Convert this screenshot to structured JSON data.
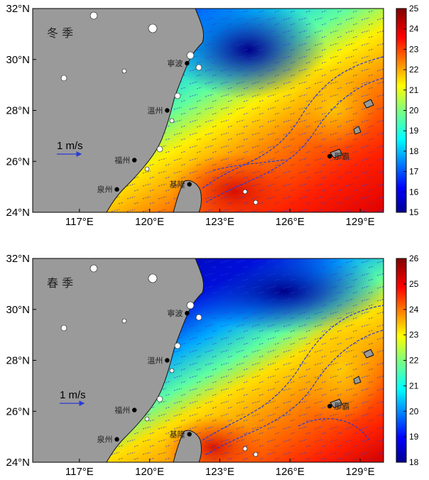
{
  "panels": [
    {
      "season": "冬 季",
      "scale_label": "1 m/s",
      "colorbar": {
        "min": 15,
        "max": 25,
        "ticks": [
          "25",
          "24",
          "23",
          "22",
          "21",
          "20",
          "19",
          "18",
          "17",
          "16",
          "15"
        ]
      },
      "cities": [
        {
          "name": "寧波",
          "lon": 121.6,
          "lat": 29.85
        },
        {
          "name": "溫州",
          "lon": 120.75,
          "lat": 28.0
        },
        {
          "name": "福州",
          "lon": 119.35,
          "lat": 26.05
        },
        {
          "name": "泉州",
          "lon": 118.6,
          "lat": 24.9
        },
        {
          "name": "基隆",
          "lon": 121.7,
          "lat": 25.1
        },
        {
          "name": "那霸",
          "lon": 127.7,
          "lat": 26.2
        }
      ]
    },
    {
      "season": "春 季",
      "scale_label": "1 m/s",
      "colorbar": {
        "min": 18,
        "max": 26,
        "ticks": [
          "26",
          "25",
          "24",
          "23",
          "22",
          "21",
          "20",
          "19",
          "18"
        ]
      },
      "cities": [
        {
          "name": "寧波",
          "lon": 121.6,
          "lat": 29.85
        },
        {
          "name": "溫州",
          "lon": 120.75,
          "lat": 28.0
        },
        {
          "name": "福州",
          "lon": 119.35,
          "lat": 26.05
        },
        {
          "name": "泉州",
          "lon": 118.6,
          "lat": 24.9
        },
        {
          "name": "基隆",
          "lon": 121.7,
          "lat": 25.1
        },
        {
          "name": "那霸",
          "lon": 127.7,
          "lat": 26.2
        }
      ]
    }
  ],
  "axes": {
    "lat_ticks": [
      "24°N",
      "26°N",
      "28°N",
      "30°N",
      "32°N"
    ],
    "lon_ticks": [
      "117°E",
      "120°E",
      "123°E",
      "126°E",
      "129°E"
    ],
    "lat_values": [
      24,
      26,
      28,
      30,
      32
    ],
    "lon_values": [
      117,
      120,
      123,
      126,
      129
    ],
    "lon_range": [
      115,
      130
    ],
    "lat_range": [
      24,
      32
    ]
  },
  "colors": {
    "land": "#9a9a9a",
    "vector": "#2a3bd6",
    "coast": "#111111"
  }
}
